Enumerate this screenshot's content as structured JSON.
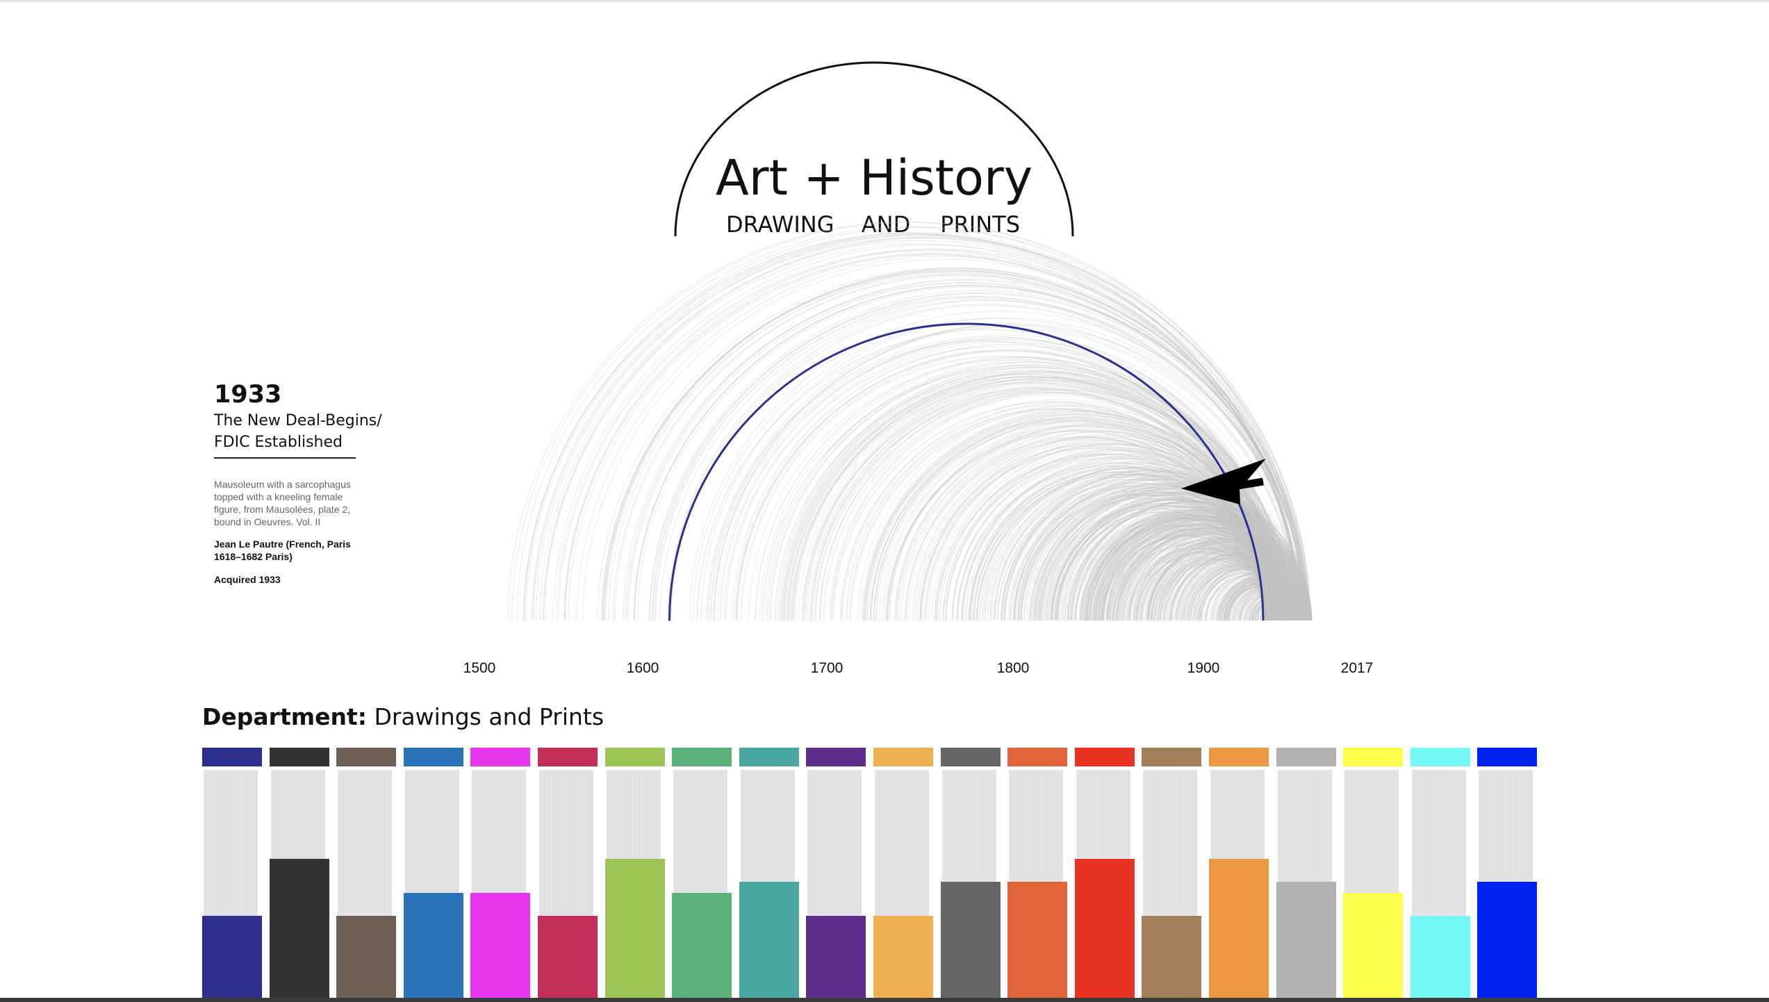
{
  "header": {
    "title": "Art + History",
    "subtitle_words": [
      "DRAWING",
      "AND",
      "PRINTS"
    ]
  },
  "info": {
    "year": "1933",
    "event_line1": "The New Deal-Begins/",
    "event_line2": "FDIC Established",
    "description": "Mausoleum with a sarcophagus topped with a kneeling female figure, from Mausolées, plate 2, bound in Oeuvres. Vol. II",
    "artist": "Jean Le Pautre (French, Paris 1618–1682 Paris)",
    "acquired": "Acquired 1933"
  },
  "axis_ticks": [
    "1500",
    "1600",
    "1700",
    "1800",
    "1900",
    "2017"
  ],
  "department": {
    "label": "Department:",
    "value": "Drawings and Prints"
  },
  "chart_data": {
    "type": "bar",
    "title": "",
    "xlabel": "",
    "ylabel": "",
    "ylim": [
      0,
      1
    ],
    "categories": [
      "",
      "",
      "",
      "",
      "",
      "",
      "",
      "",
      "",
      "",
      "",
      "",
      "",
      "",
      "",
      "",
      "",
      "",
      "",
      ""
    ],
    "values": [
      0.36,
      0.61,
      0.36,
      0.46,
      0.46,
      0.36,
      0.61,
      0.46,
      0.51,
      0.36,
      0.36,
      0.51,
      0.51,
      0.61,
      0.36,
      0.61,
      0.51,
      0.46,
      0.36,
      0.51
    ],
    "colors": [
      "#2c2f8c",
      "#333333",
      "#6e6057",
      "#2b73b8",
      "#e636ec",
      "#c42d58",
      "#9bc455",
      "#58b27a",
      "#4aa7a0",
      "#5e2e8c",
      "#efb052",
      "#666666",
      "#e06539",
      "#e83323",
      "#a17d59",
      "#ec9842",
      "#b2b2b2",
      "#fdfd4e",
      "#76f8f9",
      "#0022ee"
    ],
    "arc_chart": {
      "type": "arc",
      "x_ticks": [
        "1500",
        "1600",
        "1700",
        "1800",
        "1900",
        "2017"
      ],
      "highlight": {
        "start_year": 1605,
        "end_year": 1933,
        "color": "#2c2f8c"
      }
    }
  }
}
